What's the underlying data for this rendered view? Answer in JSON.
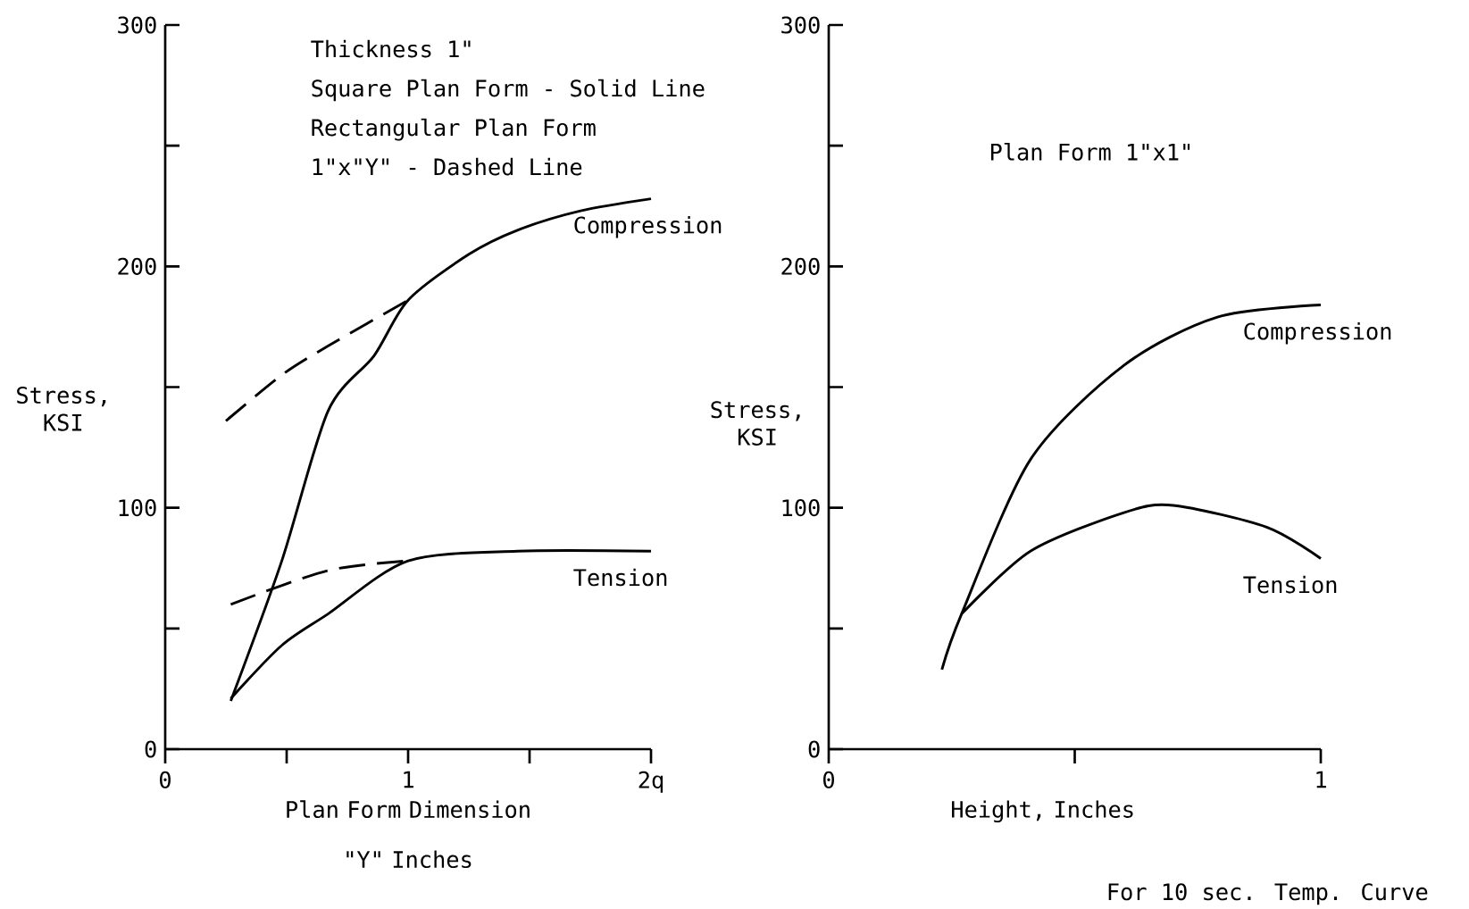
{
  "chart_data": [
    {
      "type": "line",
      "xlabel": "Plan Form Dimension \"Y\" Inches",
      "ylabel": "Stress, KSI",
      "marker": "none",
      "annotations": [
        "Thickness 1\"",
        "Square Plan Form - Solid Line",
        "Rectangular Plan Form",
        "1\"x\"Y\" - Dashed Line"
      ],
      "xlim": [
        0,
        2
      ],
      "ylim": [
        0,
        300
      ],
      "xticks": [
        0,
        {
          "value": 0.5,
          "label": null
        },
        1,
        {
          "value": 1.5,
          "label": null
        },
        {
          "value": 2,
          "label": "2q"
        }
      ],
      "yticks": [
        0,
        {
          "value": 50,
          "label": null
        },
        100,
        {
          "value": 150,
          "label": null
        },
        200,
        {
          "value": 250,
          "label": null
        },
        300
      ],
      "series": [
        {
          "name": "Compression",
          "color": "#000000",
          "line_style": "solid",
          "x": [
            0.27,
            0.48,
            0.67,
            0.86,
            1.0,
            1.25,
            1.45,
            1.71,
            2.0
          ],
          "values": [
            20,
            78,
            140,
            163,
            186,
            205,
            215,
            223,
            228
          ]
        },
        {
          "color": "#000000",
          "line_style": "dashed",
          "x": [
            0.25,
            0.48,
            0.67,
            1.0
          ],
          "values": [
            136,
            155,
            167,
            186
          ]
        },
        {
          "name": "Tension",
          "color": "#000000",
          "line_style": "solid",
          "x": [
            0.27,
            0.48,
            0.67,
            1.0,
            1.45,
            2.0
          ],
          "values": [
            21,
            43,
            56,
            78,
            82,
            82
          ]
        },
        {
          "color": "#000000",
          "line_style": "dashed",
          "x": [
            0.27,
            0.67,
            1.0
          ],
          "values": [
            60,
            74,
            78
          ]
        }
      ]
    },
    {
      "type": "line",
      "xlabel": "Height, Inches",
      "ylabel": "Stress, KSI",
      "marker": "none",
      "annotations": [
        "Plan Form 1\"x1\"",
        "For 10 sec. Temp. Curve"
      ],
      "xlim": [
        0,
        1
      ],
      "ylim": [
        0,
        300
      ],
      "xticks": [
        0,
        {
          "value": 0.5,
          "label": null
        },
        1
      ],
      "yticks": [
        0,
        {
          "value": 50,
          "label": null
        },
        100,
        {
          "value": 150,
          "label": null
        },
        200,
        {
          "value": 250,
          "label": null
        },
        300
      ],
      "series": [
        {
          "name": "Compression",
          "color": "#000000",
          "line_style": "solid",
          "x": [
            0.23,
            0.27,
            0.41,
            0.6,
            0.79,
            1.0
          ],
          "values": [
            33,
            56,
            120,
            159,
            179,
            184
          ]
        },
        {
          "name": "Tension",
          "color": "#000000",
          "line_style": "solid",
          "x": [
            0.27,
            0.41,
            0.6,
            0.7,
            0.89,
            1.0
          ],
          "values": [
            56,
            82,
            98,
            101,
            92,
            79
          ]
        }
      ]
    }
  ]
}
